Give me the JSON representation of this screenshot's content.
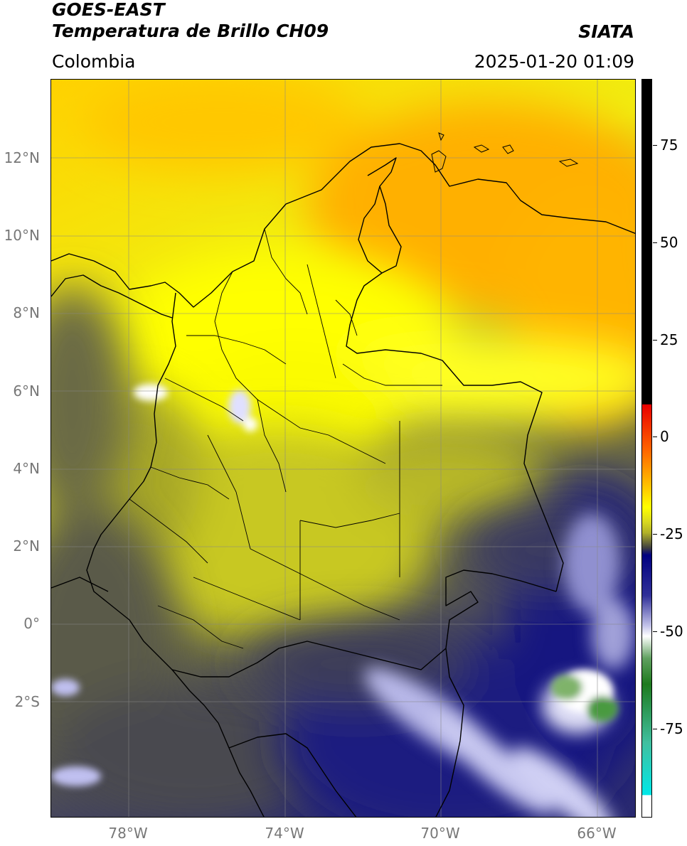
{
  "header": {
    "satellite": "GOES-EAST",
    "product": "Temperatura de Brillo CH09",
    "region": "Colombia",
    "agency": "SIATA",
    "datetime": "2025-01-20 01:09"
  },
  "map": {
    "lon_range": [
      -80.0,
      -65.0
    ],
    "lat_range": [
      -5.0,
      14.0
    ],
    "lat_ticks": [
      "12°N",
      "10°N",
      "8°N",
      "6°N",
      "4°N",
      "2°N",
      "0°",
      "2°S"
    ],
    "lon_ticks": [
      "78°W",
      "74°W",
      "70°W",
      "66°W"
    ],
    "grid": true
  },
  "colorbar": {
    "range": [
      -100,
      90
    ],
    "tick_labels": [
      "75",
      "50",
      "25",
      "0",
      "-25",
      "-50",
      "-75"
    ],
    "colors": {
      "black": "#000000",
      "red": "#e80000",
      "orange": "#ffb000",
      "yellow": "#ffff00",
      "olive": "#b5b521",
      "gray": "#4a4a4a",
      "navy": "#0a0a7a",
      "white": "#ffffff",
      "green": "#2e8b2e",
      "cyan": "#00e0e0"
    }
  }
}
